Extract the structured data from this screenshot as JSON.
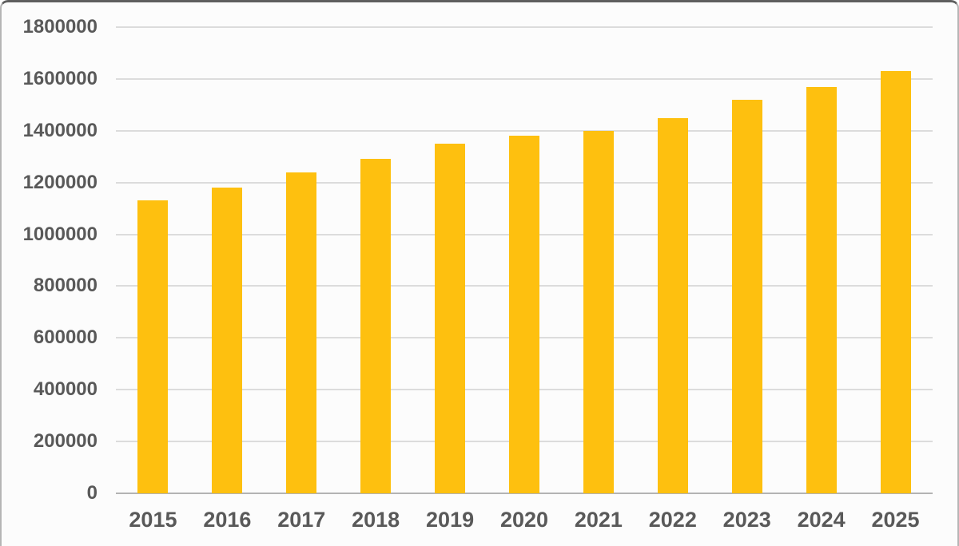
{
  "chart_data": {
    "type": "bar",
    "title": "",
    "xlabel": "",
    "ylabel": "",
    "categories": [
      "2015",
      "2016",
      "2017",
      "2018",
      "2019",
      "2020",
      "2021",
      "2022",
      "2023",
      "2024",
      "2025"
    ],
    "values": [
      1130000,
      1180000,
      1240000,
      1290000,
      1350000,
      1380000,
      1400000,
      1450000,
      1520000,
      1570000,
      1630000
    ],
    "ylim": [
      0,
      1800000
    ],
    "ytick_interval": 200000,
    "yticks": [
      "1800000",
      "1600000",
      "1400000",
      "1200000",
      "1000000",
      "800000",
      "600000",
      "400000",
      "200000",
      "0"
    ],
    "grid": "horizontal",
    "legend_position": "none",
    "colors": {
      "bar_fill": "#FEC00F",
      "gridline": "#DCDCDC",
      "axis_line": "#B3B3B3",
      "tick_label": "#595959",
      "background": "#FCFCFC"
    }
  }
}
